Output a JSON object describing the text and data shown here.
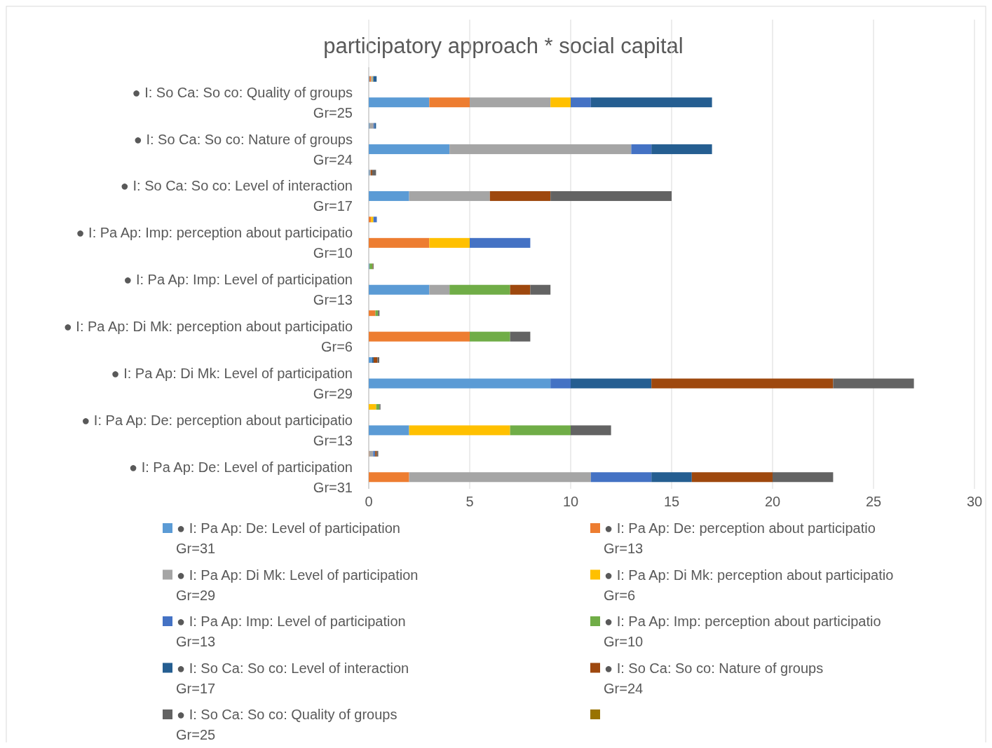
{
  "chart_data": {
    "type": "bar",
    "orientation": "horizontal",
    "stacked": true,
    "title": "participatory approach * social capital",
    "categories": [
      null,
      "● I: So Ca: So co: Quality of groups\nGr=25",
      null,
      "● I: So Ca: So co: Nature of groups\nGr=24",
      null,
      "● I: So Ca: So co: Level of interaction\nGr=17",
      null,
      "● I: Pa Ap: Imp: perception about participatio\nGr=10",
      null,
      "● I: Pa Ap: Imp: Level of participation\nGr=13",
      null,
      "● I: Pa Ap: Di Mk: perception about participatio\nGr=6",
      null,
      "● I: Pa Ap: Di Mk: Level of participation\nGr=29",
      null,
      "● I: Pa Ap: De: perception about participatio\nGr=13",
      null,
      "● I: Pa Ap: De: Level of participation\nGr=31"
    ],
    "series": [
      {
        "name": "● I: Pa Ap: De: Level of participation\nGr=31",
        "color": "#5b9bd5",
        "values": [
          0.03,
          3,
          0.03,
          4,
          0.03,
          2,
          null,
          null,
          0.03,
          3,
          null,
          null,
          0.17,
          9,
          null,
          2,
          null,
          null
        ]
      },
      {
        "name": "● I: Pa Ap: De: perception about participatio\nGr=13",
        "color": "#ed7d31",
        "values": [
          0.08,
          2,
          null,
          null,
          null,
          null,
          0.11,
          3,
          null,
          null,
          0.33,
          5,
          null,
          null,
          null,
          null,
          0.02,
          2
        ]
      },
      {
        "name": "● I: Pa Ap: Di Mk: Level of participation\nGr=29",
        "color": "#a5a5a5",
        "values": [
          0.06,
          4,
          0.21,
          9,
          0.07,
          4,
          null,
          null,
          0.01,
          1,
          null,
          null,
          null,
          null,
          null,
          null,
          0.2,
          9
        ]
      },
      {
        "name": "● I: Pa Ap: Di Mk: perception about participatio\nGr=6",
        "color": "#ffc000",
        "values": [
          0.03,
          1,
          null,
          null,
          null,
          null,
          0.12,
          2,
          null,
          null,
          null,
          null,
          null,
          null,
          0.37,
          5,
          null,
          null
        ]
      },
      {
        "name": "● I: Pa Ap: Imp: Level of participation\nGr=13",
        "color": "#4472c4",
        "values": [
          0.03,
          1,
          0.05,
          1,
          null,
          null,
          0.17,
          3,
          null,
          null,
          null,
          null,
          null,
          1,
          null,
          null,
          0.07,
          3
        ]
      },
      {
        "name": "● I: Pa Ap: Imp: perception about participatio\nGr=10",
        "color": "#70ad47",
        "values": [
          null,
          null,
          null,
          null,
          null,
          null,
          null,
          null,
          0.15,
          3,
          0.13,
          2,
          null,
          null,
          0.16,
          3,
          null,
          null
        ]
      },
      {
        "name": "● I: So Ca: So co: Level of interaction\nGr=17",
        "color": "#255e91",
        "values": [
          0.16,
          6,
          0.07,
          3,
          null,
          null,
          null,
          null,
          null,
          null,
          null,
          null,
          0.07,
          4,
          null,
          null,
          0.03,
          2
        ]
      },
      {
        "name": "● I: So Ca: So co: Nature of groups\nGr=24",
        "color": "#9e480e",
        "values": [
          null,
          null,
          null,
          null,
          0.07,
          3,
          null,
          null,
          0.02,
          1,
          null,
          null,
          0.19,
          9,
          null,
          null,
          0.08,
          4
        ]
      },
      {
        "name": "● I: So Ca: So co: Quality of groups\nGr=25",
        "color": "#636363",
        "values": [
          null,
          null,
          null,
          null,
          0.19,
          6,
          null,
          null,
          0.03,
          1,
          0.07,
          1,
          0.09,
          4,
          0.05,
          2,
          0.07,
          3
        ]
      },
      {
        "color": "#997300",
        "values": [
          null,
          null,
          null,
          null,
          null,
          null,
          null,
          null,
          null,
          null,
          null,
          null,
          null,
          null,
          null,
          null,
          null,
          null
        ]
      }
    ],
    "xlim": [
      0,
      30
    ],
    "xticks": [
      0,
      5,
      10,
      15,
      20,
      25,
      30
    ],
    "grid": "x",
    "legend": "bottom"
  }
}
